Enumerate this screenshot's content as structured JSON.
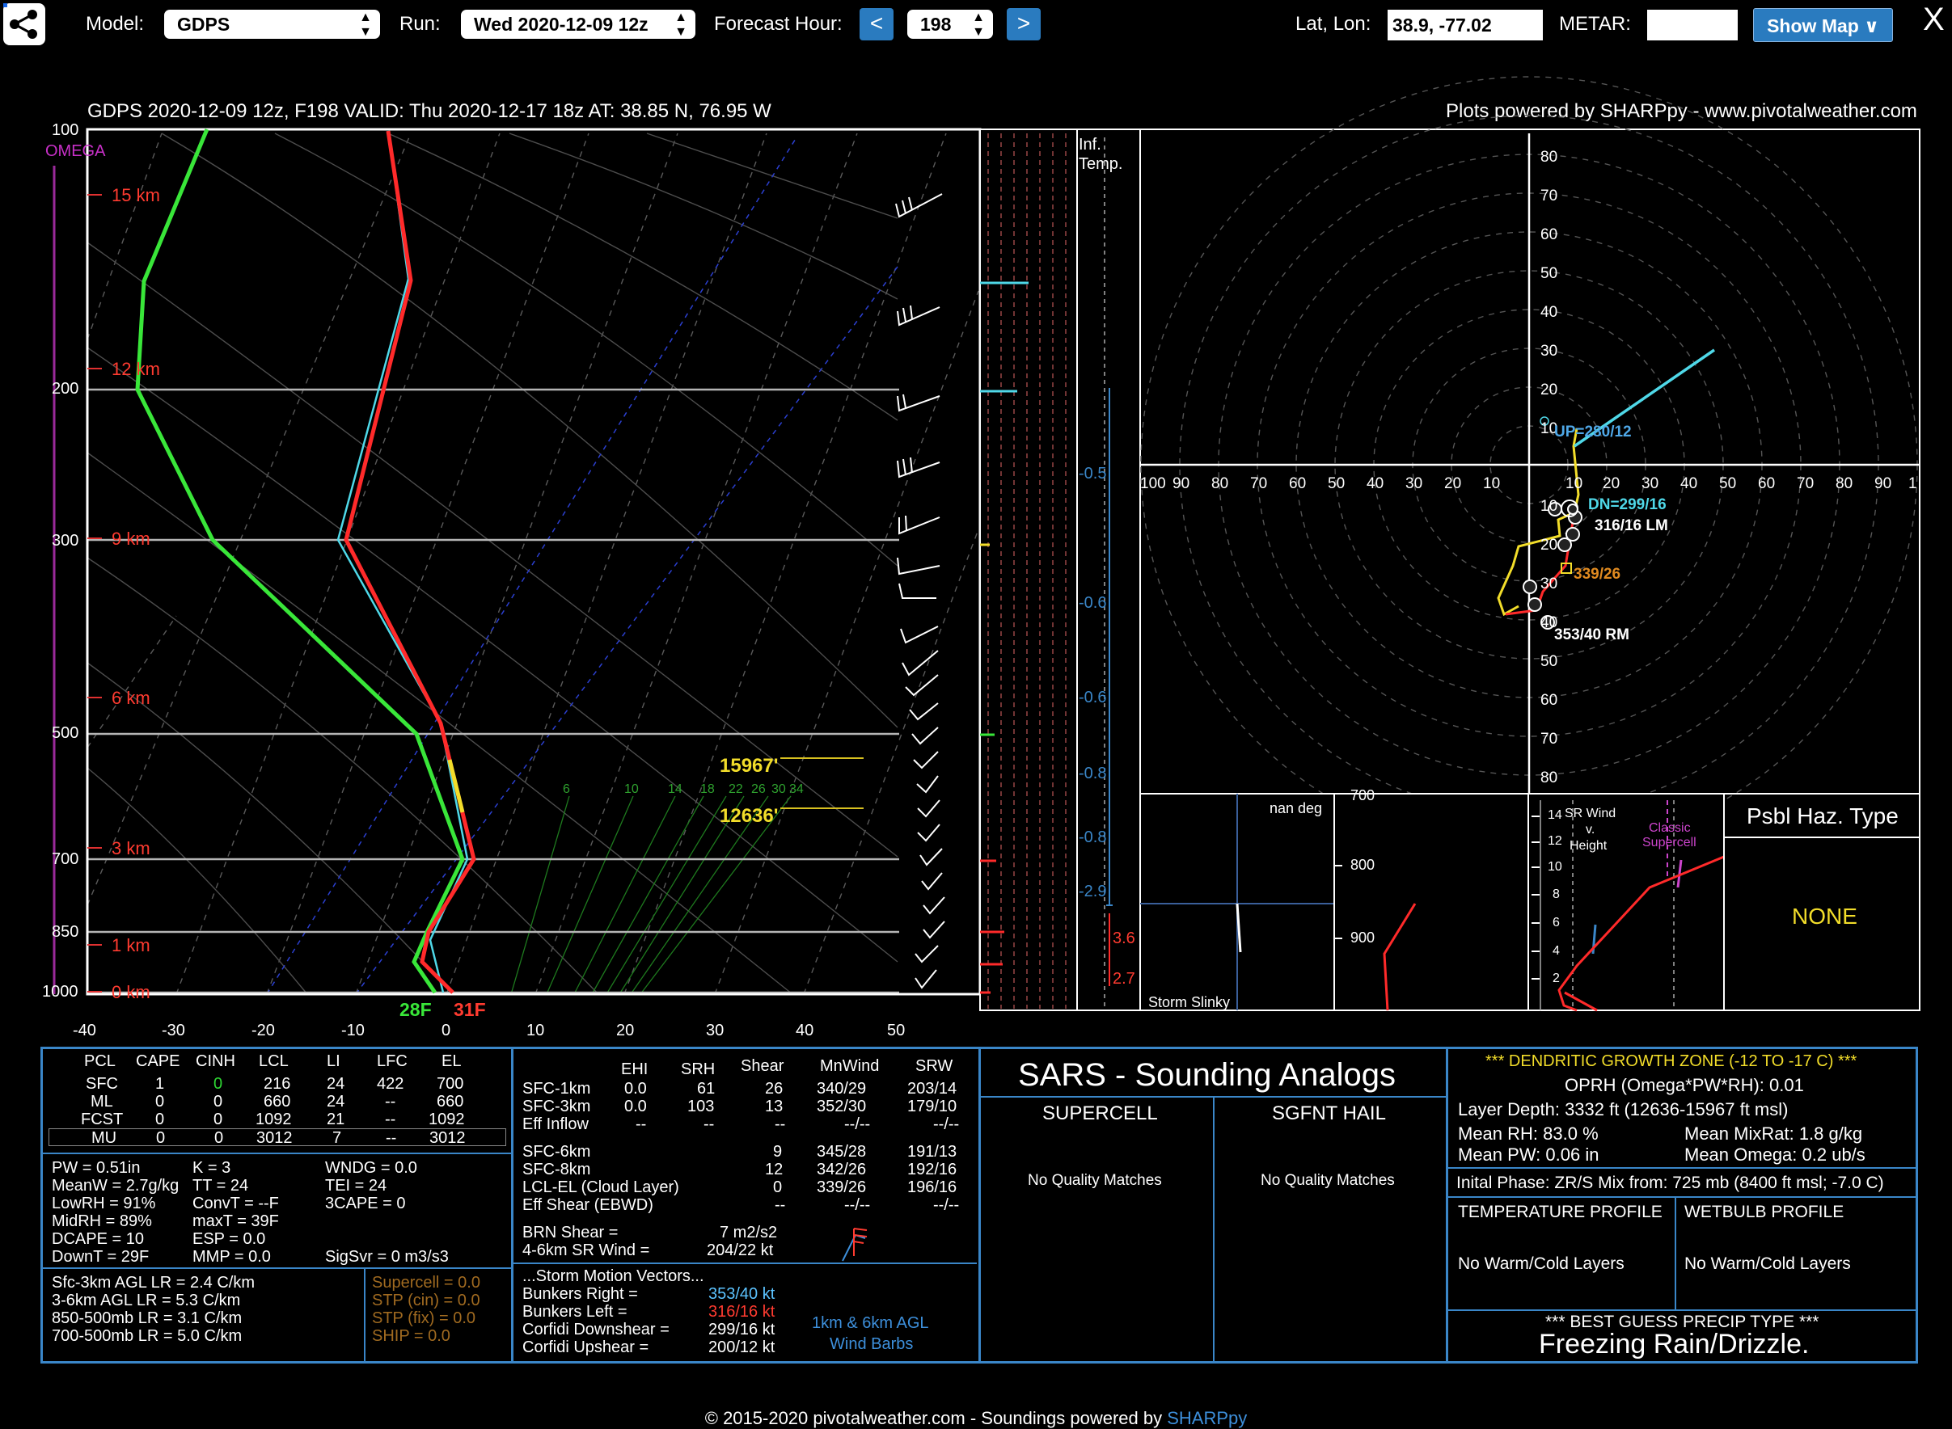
{
  "toolbar": {
    "model_label": "Model:",
    "model_value": "GDPS",
    "run_label": "Run:",
    "run_value": "Wed 2020-12-09 12z",
    "fh_label": "Forecast Hour:",
    "fh_prev": "<",
    "fh_value": "198",
    "fh_next": ">",
    "latlon_label": "Lat, Lon:",
    "latlon_value": "38.9, -77.02",
    "metar_label": "METAR:",
    "metar_value": "",
    "show_map": "Show Map ∨",
    "close": "X"
  },
  "header": {
    "left": "GDPS 2020-12-09 12z, F198  VALID: Thu 2020-12-17 18z  AT: 38.85 N, 76.95 W",
    "right": "Plots powered by SHARPpy - www.pivotalweather.com"
  },
  "skewt": {
    "omega_label": "OMEGA",
    "pressure_labels": [
      "100",
      "200",
      "300",
      "500",
      "700",
      "850",
      "1000"
    ],
    "height_labels": [
      "15 km",
      "12 km",
      "9 km",
      "6 km",
      "3 km",
      "1 km",
      "0 km"
    ],
    "temp_ticks": [
      "-40",
      "-30",
      "-20",
      "-10",
      "0",
      "10",
      "20",
      "30",
      "40",
      "50"
    ],
    "mixing_ratio_labels": [
      "6",
      "10",
      "14",
      "18",
      "22",
      "26",
      "30",
      "34"
    ],
    "dgz_top": "15967'",
    "dgz_bottom": "12636'",
    "sfc_dew": "28F",
    "sfc_temp": "31F",
    "colors": {
      "temp": "#ff2a2a",
      "dew": "#39e639",
      "wetbulb": "#4fd8e8",
      "dgz": "#f2dd2a"
    }
  },
  "inflow": {
    "title_line1": "Inf.",
    "title_line2": "Temp.",
    "omega_values": [
      "-0.5",
      "-0.6",
      "-0.6",
      "-0.8",
      "-0.8",
      "-2.9"
    ],
    "temp_values": [
      "3.6",
      "2.7"
    ]
  },
  "hodograph": {
    "ring_labels_y": [
      "80",
      "70",
      "60",
      "50",
      "40",
      "30",
      "20",
      "10",
      "10",
      "20",
      "30",
      "40",
      "50",
      "60",
      "70",
      "80"
    ],
    "ring_labels_x": [
      "100",
      "90",
      "80",
      "70",
      "60",
      "50",
      "40",
      "30",
      "20",
      "10",
      "10",
      "20",
      "30",
      "40",
      "50",
      "60",
      "70",
      "80",
      "90",
      "1"
    ],
    "up_label": "UP=280/12",
    "dn_label": "DN=299/16",
    "lm_label": "316/16 LM",
    "mean_label": "339/26",
    "rm_label": "353/40 RM"
  },
  "storm_slinky": {
    "title": "Storm Slinky",
    "deg": "nan deg"
  },
  "theta": {
    "labels": [
      "700",
      "800",
      "900"
    ]
  },
  "srwind": {
    "title_line1": "SR Wind",
    "title_line2": "v.",
    "title_line3": "Height",
    "classic_line1": "Classic",
    "classic_line2": "Supercell",
    "heights": [
      "14",
      "12",
      "10",
      "8",
      "6",
      "4",
      "2"
    ]
  },
  "haz": {
    "title": "Psbl Haz. Type",
    "value": "NONE"
  },
  "parcel_table": {
    "headers": [
      "PCL",
      "CAPE",
      "CINH",
      "LCL",
      "LI",
      "LFC",
      "EL"
    ],
    "rows": [
      [
        "SFC",
        "1",
        "0",
        "216",
        "24",
        "422",
        "700"
      ],
      [
        "ML",
        "0",
        "0",
        "660",
        "24",
        "--",
        "660"
      ],
      [
        "FCST",
        "0",
        "0",
        "1092",
        "21",
        "--",
        "1092"
      ],
      [
        "MU",
        "0",
        "0",
        "3012",
        "7",
        "--",
        "3012"
      ]
    ]
  },
  "indices": {
    "col1": [
      "PW = 0.51in",
      "MeanW = 2.7g/kg",
      "LowRH = 91%",
      "MidRH = 89%",
      "DCAPE = 10",
      "DownT = 29F"
    ],
    "col2": [
      "K = 3",
      "TT = 24",
      "ConvT = --F",
      "maxT = 39F",
      "ESP = 0.0",
      "MMP = 0.0"
    ],
    "col3": [
      "WNDG = 0.0",
      "TEI = 24",
      "3CAPE = 0",
      "",
      "",
      "SigSvr = 0 m3/s3"
    ]
  },
  "lapse_rates": [
    "Sfc-3km AGL LR = 2.4 C/km",
    "3-6km AGL LR = 5.3 C/km",
    "850-500mb LR = 3.1 C/km",
    "700-500mb LR = 5.0 C/km"
  ],
  "composite": [
    "Supercell = 0.0",
    "STP (cin) = 0.0",
    "STP (fix) = 0.0",
    "SHIP = 0.0"
  ],
  "kinematics": {
    "headers": [
      "EHI",
      "SRH",
      "Shear",
      "MnWind",
      "SRW"
    ],
    "rows": [
      [
        "SFC-1km",
        "0.0",
        "61",
        "26",
        "340/29",
        "203/14"
      ],
      [
        "SFC-3km",
        "0.0",
        "103",
        "13",
        "352/30",
        "179/10"
      ],
      [
        "Eff Inflow",
        "--",
        "--",
        "--",
        "--/--",
        "--/--"
      ],
      [
        "SFC-6km",
        "",
        "",
        "9",
        "345/28",
        "191/13"
      ],
      [
        "SFC-8km",
        "",
        "",
        "12",
        "342/26",
        "192/16"
      ],
      [
        "LCL-EL (Cloud Layer)",
        "",
        "",
        "0",
        "339/26",
        "196/16"
      ],
      [
        "Eff Shear (EBWD)",
        "",
        "",
        "--",
        "--/--",
        "--/--"
      ]
    ],
    "brn_label": "BRN Shear =",
    "brn_value": "7 m2/s2",
    "sr46_label": "4-6km SR Wind =",
    "sr46_value": "204/22 kt",
    "smv_title": "...Storm Motion Vectors...",
    "smv": [
      {
        "label": "Bunkers Right =",
        "value": "353/40 kt",
        "color": "#5cc3ff"
      },
      {
        "label": "Bunkers Left =",
        "value": "316/16 kt",
        "color": "#ff3b30"
      },
      {
        "label": "Corfidi Downshear =",
        "value": "299/16 kt",
        "color": "#ffffff"
      },
      {
        "label": "Corfidi Upshear =",
        "value": "200/12 kt",
        "color": "#ffffff"
      }
    ],
    "barb_caption1": "1km & 6km AGL",
    "barb_caption2": "Wind Barbs"
  },
  "sars": {
    "title": "SARS - Sounding Analogs",
    "supercell": "SUPERCELL",
    "sgfnt_hail": "SGFNT HAIL",
    "supercell_match": "No Quality Matches",
    "hail_match": "No Quality Matches"
  },
  "dgz": {
    "title": "*** DENDRITIC GROWTH ZONE (-12 TO -17 C) ***",
    "oprh": "OPRH (Omega*PW*RH): 0.01",
    "layer_depth": "Layer Depth: 3332 ft (12636-15967 ft msl)",
    "mean_rh": "Mean RH: 83.0 %",
    "mean_mixrat": "Mean MixRat: 1.8 g/kg",
    "mean_pw": "Mean PW: 0.06 in",
    "mean_omega": "Mean Omega: 0.2 ub/s",
    "initial_phase": "Inital Phase: ZR/S Mix from: 725 mb (8400 ft msl; -7.0 C)",
    "temp_profile": "TEMPERATURE PROFILE",
    "wetbulb_profile": "WETBULB PROFILE",
    "temp_profile_val": "No Warm/Cold Layers",
    "wetbulb_profile_val": "No Warm/Cold Layers",
    "best_guess_title": "*** BEST GUESS PRECIP TYPE ***",
    "best_guess": "Freezing Rain/Drizzle."
  },
  "footer": {
    "text": "© 2015-2020 pivotalweather.com - Soundings powered by ",
    "link": "SHARPpy"
  }
}
